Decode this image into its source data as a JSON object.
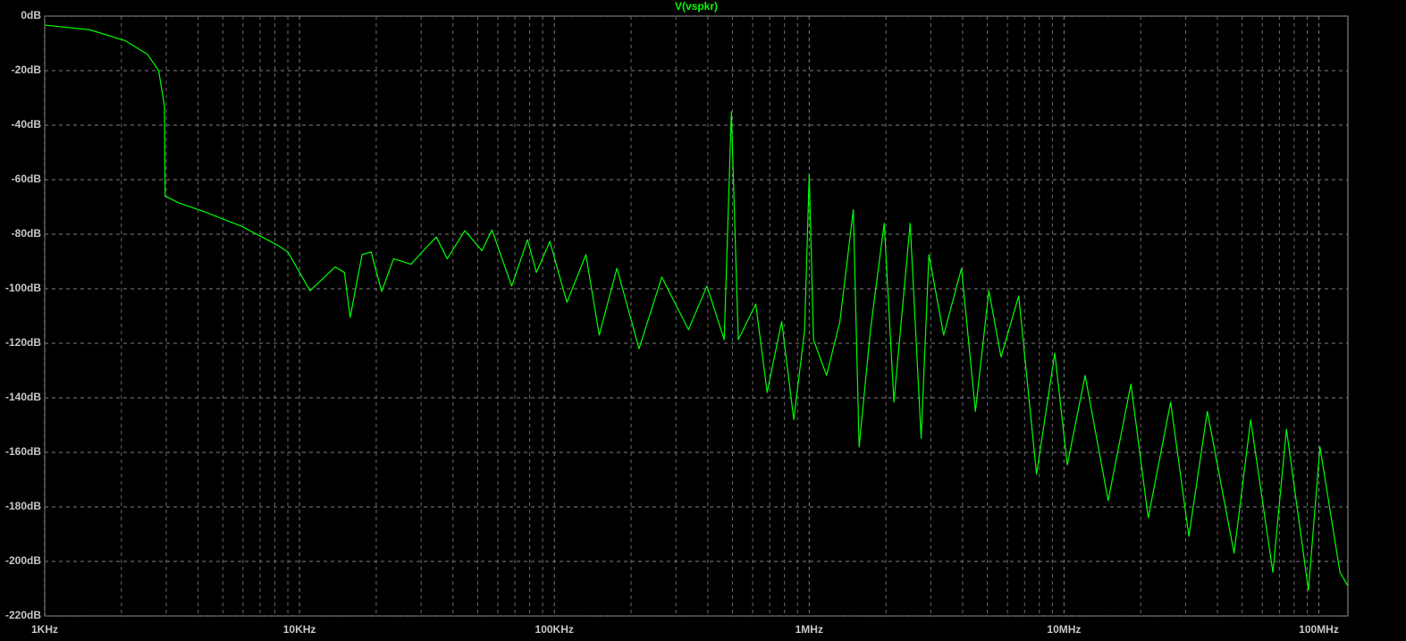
{
  "chart_data": {
    "type": "line",
    "log_x": true,
    "grid": true,
    "minor_grid": true,
    "x": [
      1000,
      1500,
      2070,
      2530,
      2800,
      2950,
      2970,
      3360,
      4300,
      5900,
      8200,
      9000,
      11000,
      13800,
      15000,
      15800,
      17600,
      19100,
      21000,
      23400,
      27400,
      29600,
      34400,
      38000,
      44500,
      52000,
      56900,
      68000,
      78500,
      85000,
      96000,
      112000,
      133000,
      150000,
      176000,
      215000,
      264000,
      336000,
      397000,
      464000,
      495000,
      527000,
      617000,
      684000,
      780000,
      870000,
      960000,
      1000000,
      1040000,
      1170000,
      1320000,
      1490000,
      1570000,
      1740000,
      1970000,
      2150000,
      2490000,
      2750000,
      2950000,
      3370000,
      3960000,
      4490000,
      5070000,
      5660000,
      6640000,
      7800000,
      9200000,
      10300000,
      12100000,
      14900000,
      18300000,
      21400000,
      26200000,
      30900000,
      36500000,
      46500000,
      54000000,
      66000000,
      74600000,
      91000000,
      101000000,
      121000000,
      130000000
    ],
    "series": [
      {
        "name": "V(vspkr)",
        "color": "#00ff00",
        "values": [
          -3.3,
          -5,
          -9,
          -14,
          -20,
          -33,
          -66,
          -68.5,
          -72,
          -77,
          -84,
          -86.5,
          -100.7,
          -92,
          -94,
          -110.5,
          -87.5,
          -86.5,
          -101,
          -89,
          -91,
          -87.5,
          -81,
          -89,
          -78.7,
          -86,
          -78.4,
          -99,
          -82,
          -94,
          -82.6,
          -105,
          -87.5,
          -117,
          -92.5,
          -122,
          -95.7,
          -115,
          -99,
          -118.7,
          -35,
          -118.7,
          -105.6,
          -138,
          -112,
          -148,
          -115,
          -58,
          -118.7,
          -131.8,
          -112,
          -71,
          -158,
          -115,
          -76,
          -141.6,
          -76,
          -154.8,
          -87.5,
          -117,
          -92.5,
          -145,
          -100.7,
          -125,
          -102.6,
          -168,
          -123.6,
          -164.6,
          -131.8,
          -177.7,
          -135,
          -184,
          -141.6,
          -190.8,
          -145,
          -197,
          -148,
          -204,
          -151.5,
          -210.5,
          -158,
          -204,
          -209
        ]
      }
    ],
    "xlim": [
      1000,
      130000000
    ],
    "ylim": [
      -220,
      0
    ],
    "xticks": [
      {
        "value": 1000,
        "label": "1KHz"
      },
      {
        "value": 10000,
        "label": "10KHz"
      },
      {
        "value": 100000,
        "label": "100KHz"
      },
      {
        "value": 1000000,
        "label": "1MHz"
      },
      {
        "value": 10000000,
        "label": "10MHz"
      },
      {
        "value": 100000000,
        "label": "100MHz"
      }
    ],
    "yticks": [
      {
        "value": 0,
        "label": "0dB"
      },
      {
        "value": -20,
        "label": "-20dB"
      },
      {
        "value": -40,
        "label": "-40dB"
      },
      {
        "value": -60,
        "label": "-60dB"
      },
      {
        "value": -80,
        "label": "-80dB"
      },
      {
        "value": -100,
        "label": "-100dB"
      },
      {
        "value": -120,
        "label": "-120dB"
      },
      {
        "value": -140,
        "label": "-140dB"
      },
      {
        "value": -160,
        "label": "-160dB"
      },
      {
        "value": -180,
        "label": "-180dB"
      },
      {
        "value": -200,
        "label": "-200dB"
      },
      {
        "value": -220,
        "label": "-220dB"
      }
    ]
  }
}
